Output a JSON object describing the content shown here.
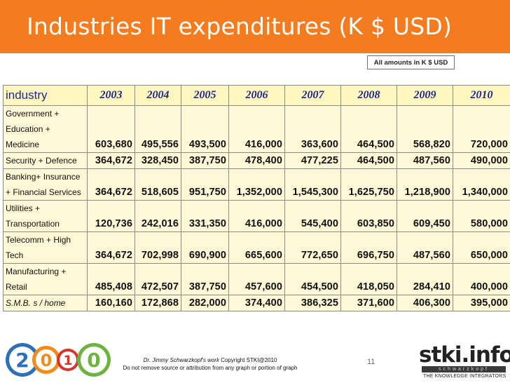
{
  "title": "Industries IT expenditures (K $ USD)",
  "note": "All amounts in K $ USD",
  "table": {
    "header": [
      "industry",
      "2003",
      "2004",
      "2005",
      "2006",
      "2007",
      "2008",
      "2009",
      "2010"
    ],
    "rows": [
      {
        "label_lines": [
          "Government +",
          "Education +",
          "Medicine"
        ],
        "values": [
          "603,680",
          "495,556",
          "493,500",
          "416,000",
          "363,600",
          "464,500",
          "568,820",
          "720,000"
        ]
      },
      {
        "label_lines": [
          "Security + Defence"
        ],
        "values": [
          "364,672",
          "328,450",
          "387,750",
          "478,400",
          "477,225",
          "464,500",
          "487,560",
          "490,000"
        ]
      },
      {
        "label_lines": [
          "Banking+ Insurance",
          "+ Financial Services"
        ],
        "values": [
          "364,672",
          "518,605",
          "951,750",
          "1,352,000",
          "1,545,300",
          "1,625,750",
          "1,218,900",
          "1,340,000"
        ]
      },
      {
        "label_lines": [
          "Utilities +",
          "Transportation"
        ],
        "values": [
          "120,736",
          "242,016",
          "331,350",
          "416,000",
          "545,400",
          "603,850",
          "609,450",
          "580,000"
        ]
      },
      {
        "label_lines": [
          "Telecomm +  High",
          "Tech"
        ],
        "values": [
          "364,672",
          "702,998",
          "690,900",
          "665,600",
          "772,650",
          "696,750",
          "487,560",
          "650,000"
        ]
      },
      {
        "label_lines": [
          "Manufacturing +",
          "Retail"
        ],
        "values": [
          "485,408",
          "472,507",
          "387,750",
          "457,600",
          "454,500",
          "418,050",
          "284,410",
          "400,000"
        ]
      },
      {
        "label_lines": [
          "S.M.B. s / home"
        ],
        "values": [
          "160,160",
          "172,868",
          "282,000",
          "374,400",
          "386,325",
          "371,600",
          "406,300",
          "395,000"
        ]
      }
    ]
  },
  "footer": {
    "logo_digits": [
      "2",
      "0",
      "1",
      "0"
    ],
    "copyright_author": "Dr. Jimmy Schwarzkopf's work",
    "copyright_rest": "Copyright STKI@2010",
    "copyright_line2": "Do not remove source or attribution from any graph or portion of graph",
    "page_number": "11",
    "brand_name": "stki.info",
    "brand_sub": "schwarzkopf",
    "brand_tagline": "THE KNOWLEDGE INTEGRATORS"
  },
  "colors": {
    "title_bar": "#f47c1f",
    "table_bg": "#fff8d6",
    "header_text": "#1f2a8a"
  }
}
